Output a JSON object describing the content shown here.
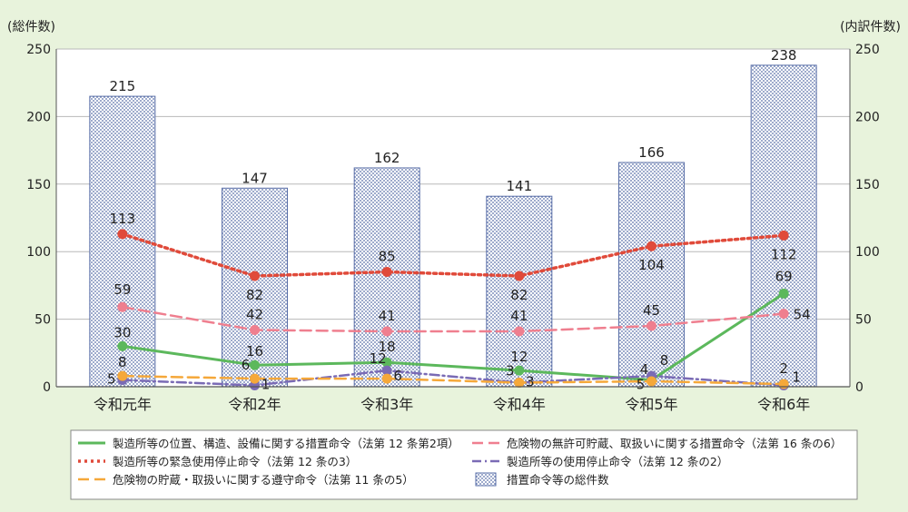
{
  "chart_data": {
    "type": "bar",
    "left_axis_label": "(総件数)",
    "right_axis_label": "(内訳件数)",
    "categories": [
      "令和元年",
      "令和2年",
      "令和3年",
      "令和4年",
      "令和5年",
      "令和6年"
    ],
    "ylim": [
      0,
      250
    ],
    "yticks": [
      "0",
      "50",
      "100",
      "150",
      "200",
      "250"
    ],
    "grid": "horizontal",
    "legend_placement": "bottom",
    "bars": {
      "name": "措置命令等の総件数",
      "values": [
        215,
        147,
        162,
        141,
        166,
        238
      ],
      "color": "#5a6fa8"
    },
    "series": [
      {
        "name": "製造所等の位置、構造、設備に関する措置命令（法第 12 条第2項）",
        "values": [
          30,
          16,
          18,
          12,
          5,
          69
        ],
        "color": "#5cb85c",
        "style": "solid"
      },
      {
        "name": "危険物の無許可貯蔵、取扱いに関する措置命令（法第 16 条の6）",
        "values": [
          59,
          42,
          41,
          41,
          45,
          54
        ],
        "color": "#ef7f8f",
        "style": "dashed"
      },
      {
        "name": "製造所等の緊急使用停止命令（法第 12 条の3）",
        "values": [
          113,
          82,
          85,
          82,
          104,
          112
        ],
        "color": "#e04a3a",
        "style": "dotted"
      },
      {
        "name": "製造所等の使用停止命令（法第 12 条の2）",
        "values": [
          5,
          1,
          12,
          3,
          8,
          1
        ],
        "color": "#7a6bb5",
        "style": "dashdot"
      },
      {
        "name": "危険物の貯蔵・取扱いに関する遵守命令（法第 11 条の5）",
        "values": [
          8,
          6,
          6,
          3,
          4,
          2
        ],
        "color": "#f5a83a",
        "style": "dashed"
      }
    ]
  }
}
